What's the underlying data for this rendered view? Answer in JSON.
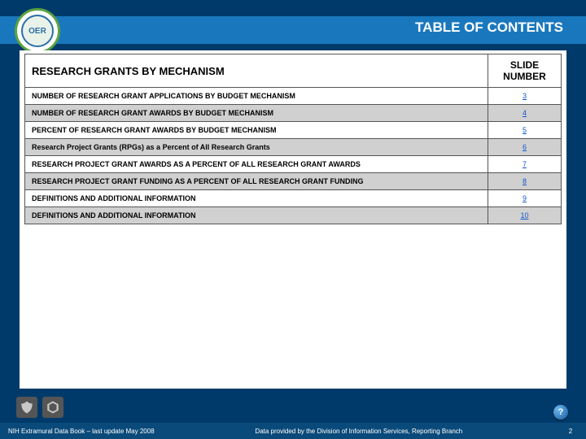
{
  "colors": {
    "page_bg": "#003a6a",
    "header_band": "#1978bd",
    "footer_bar": "#0a4a7a",
    "alt_row": "#d0d0d0",
    "border": "#555555",
    "link": "#1155cc"
  },
  "logo": {
    "text": "OER"
  },
  "title": "TABLE OF CONTENTS",
  "table": {
    "section_header": "RESEARCH GRANTS BY MECHANISM",
    "slide_header": "SLIDE NUMBER",
    "rows": [
      {
        "label": "NUMBER OF RESEARCH GRANT APPLICATIONS BY BUDGET MECHANISM",
        "slide": "3"
      },
      {
        "label": "NUMBER OF RESEARCH GRANT AWARDS BY BUDGET MECHANISM",
        "slide": "4"
      },
      {
        "label": "PERCENT OF RESEARCH GRANT AWARDS BY BUDGET MECHANISM",
        "slide": "5"
      },
      {
        "label": "Research Project Grants (RPGs) as a Percent of All Research Grants",
        "slide": "6"
      },
      {
        "label": "RESEARCH PROJECT GRANT AWARDS AS A PERCENT OF ALL RESEARCH GRANT AWARDS",
        "slide": "7"
      },
      {
        "label": "RESEARCH PROJECT GRANT FUNDING AS A PERCENT OF ALL RESEARCH GRANT FUNDING",
        "slide": "8"
      },
      {
        "label": "DEFINITIONS AND ADDITIONAL INFORMATION",
        "slide": "9"
      },
      {
        "label": "DEFINITIONS AND ADDITIONAL INFORMATION",
        "slide": "10"
      }
    ]
  },
  "footer": {
    "left": "NIH Extramural Data Book – last update May 2008",
    "right": "Data provided by the Division of Information Services, Reporting Branch",
    "page": "2"
  },
  "help_badge": "?"
}
